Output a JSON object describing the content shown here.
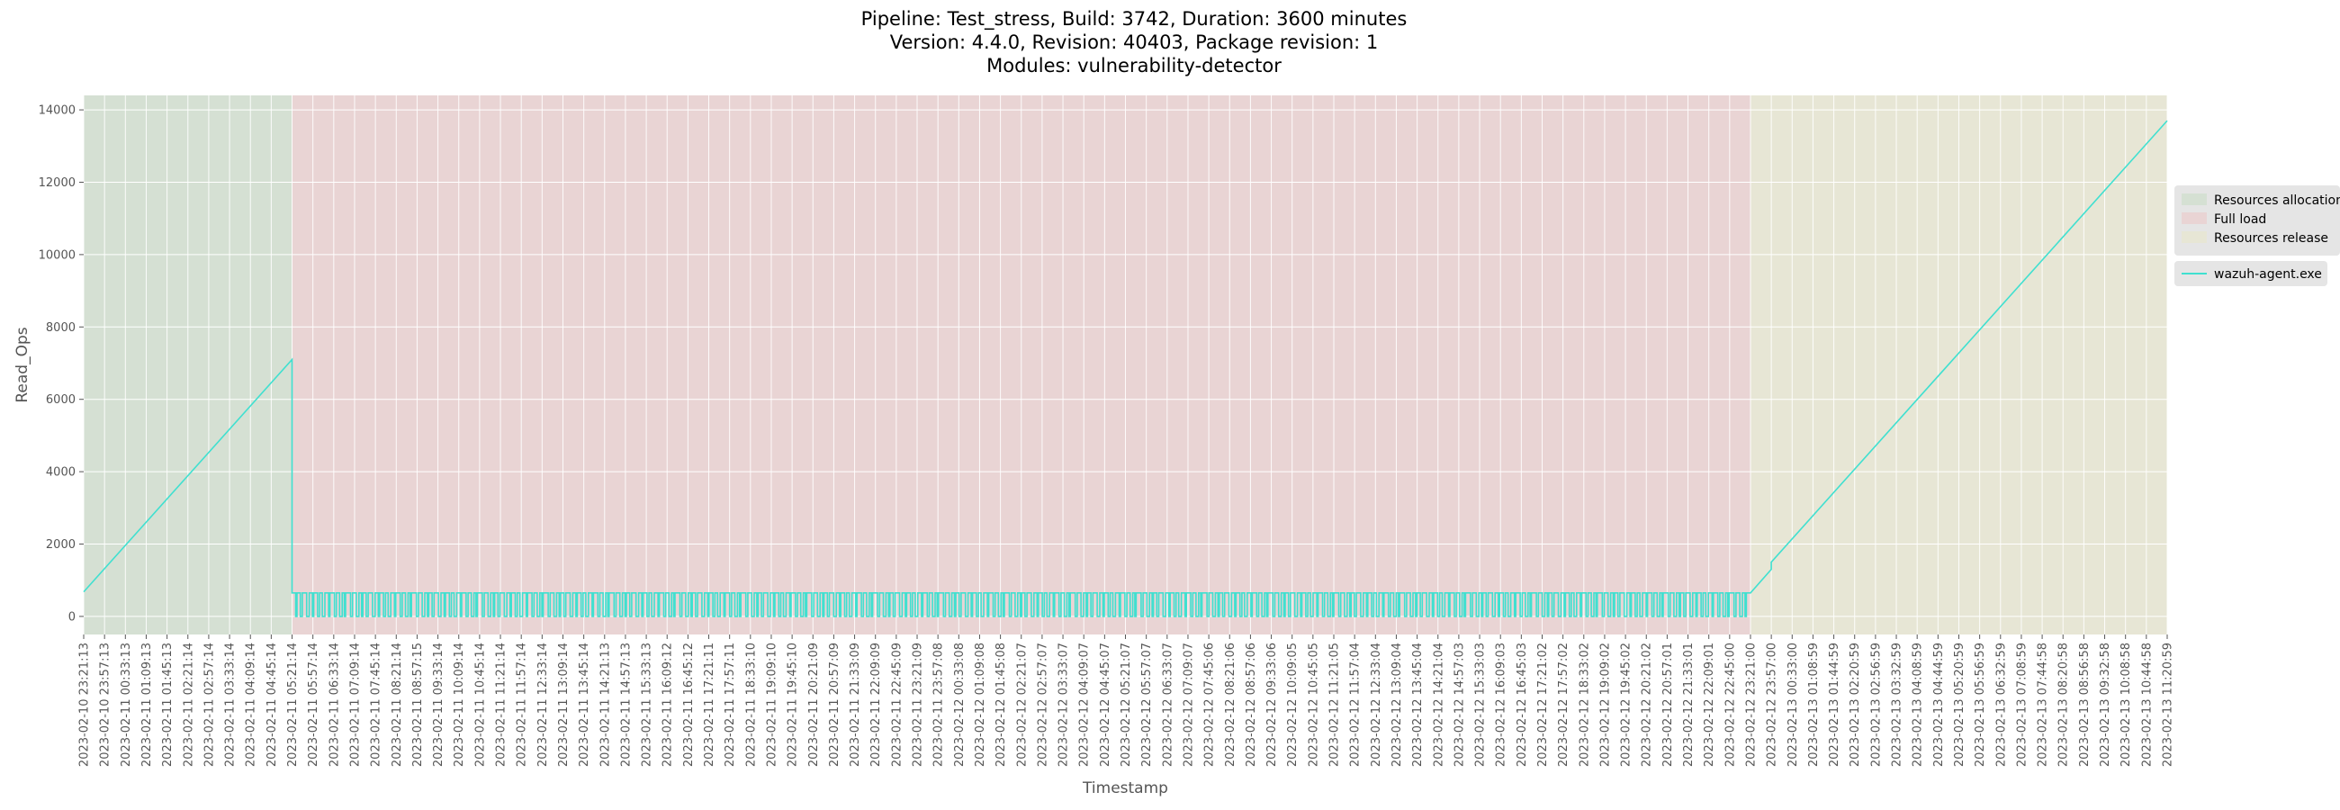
{
  "title_lines": [
    "Pipeline: Test_stress, Build: 3742, Duration: 3600 minutes",
    "Version: 4.4.0, Revision: 40403, Package revision: 1",
    "Modules: vulnerability-detector"
  ],
  "colors": {
    "background": "#ffffff",
    "plot_bg": "#e5e5e5",
    "grid": "#ffffff",
    "series": "#40e0d0",
    "phase_allocation": "#c9dcc5",
    "phase_full_load": "#ecc7c7",
    "phase_release": "#e9e8c8"
  },
  "chart_data": {
    "type": "line",
    "xlabel": "Timestamp",
    "ylabel": "Read_Ops",
    "ylim": [
      -500,
      14400
    ],
    "yticks": [
      0,
      2000,
      4000,
      6000,
      8000,
      10000,
      12000,
      14000
    ],
    "grid": true,
    "legend_position": "right",
    "xtick_labels": [
      "2023-02-10 23:21:13",
      "2023-02-10 23:57:13",
      "2023-02-11 00:33:13",
      "2023-02-11 01:09:13",
      "2023-02-11 01:45:13",
      "2023-02-11 02:21:14",
      "2023-02-11 02:57:14",
      "2023-02-11 03:33:14",
      "2023-02-11 04:09:14",
      "2023-02-11 04:45:14",
      "2023-02-11 05:21:14",
      "2023-02-11 05:57:14",
      "2023-02-11 06:33:14",
      "2023-02-11 07:09:14",
      "2023-02-11 07:45:14",
      "2023-02-11 08:21:14",
      "2023-02-11 08:57:15",
      "2023-02-11 09:33:14",
      "2023-02-11 10:09:14",
      "2023-02-11 10:45:14",
      "2023-02-11 11:21:14",
      "2023-02-11 11:57:14",
      "2023-02-11 12:33:14",
      "2023-02-11 13:09:14",
      "2023-02-11 13:45:14",
      "2023-02-11 14:21:13",
      "2023-02-11 14:57:13",
      "2023-02-11 15:33:13",
      "2023-02-11 16:09:12",
      "2023-02-11 16:45:12",
      "2023-02-11 17:21:11",
      "2023-02-11 17:57:11",
      "2023-02-11 18:33:10",
      "2023-02-11 19:09:10",
      "2023-02-11 19:45:10",
      "2023-02-11 20:21:09",
      "2023-02-11 20:57:09",
      "2023-02-11 21:33:09",
      "2023-02-11 22:09:09",
      "2023-02-11 22:45:09",
      "2023-02-11 23:21:09",
      "2023-02-11 23:57:08",
      "2023-02-12 00:33:08",
      "2023-02-12 01:09:08",
      "2023-02-12 01:45:08",
      "2023-02-12 02:21:07",
      "2023-02-12 02:57:07",
      "2023-02-12 03:33:07",
      "2023-02-12 04:09:07",
      "2023-02-12 04:45:07",
      "2023-02-12 05:21:07",
      "2023-02-12 05:57:07",
      "2023-02-12 06:33:07",
      "2023-02-12 07:09:07",
      "2023-02-12 07:45:06",
      "2023-02-12 08:21:06",
      "2023-02-12 08:57:06",
      "2023-02-12 09:33:06",
      "2023-02-12 10:09:05",
      "2023-02-12 10:45:05",
      "2023-02-12 11:21:05",
      "2023-02-12 11:57:04",
      "2023-02-12 12:33:04",
      "2023-02-12 13:09:04",
      "2023-02-12 13:45:04",
      "2023-02-12 14:21:04",
      "2023-02-12 14:57:03",
      "2023-02-12 15:33:03",
      "2023-02-12 16:09:03",
      "2023-02-12 16:45:03",
      "2023-02-12 17:21:02",
      "2023-02-12 17:57:02",
      "2023-02-12 18:33:02",
      "2023-02-12 19:09:02",
      "2023-02-12 19:45:02",
      "2023-02-12 20:21:02",
      "2023-02-12 20:57:01",
      "2023-02-12 21:33:01",
      "2023-02-12 22:09:01",
      "2023-02-12 22:45:00",
      "2023-02-12 23:21:00",
      "2023-02-12 23:57:00",
      "2023-02-13 00:33:00",
      "2023-02-13 01:08:59",
      "2023-02-13 01:44:59",
      "2023-02-13 02:20:59",
      "2023-02-13 02:56:59",
      "2023-02-13 03:32:59",
      "2023-02-13 04:08:59",
      "2023-02-13 04:44:59",
      "2023-02-13 05:20:59",
      "2023-02-13 05:56:59",
      "2023-02-13 06:32:59",
      "2023-02-13 07:08:59",
      "2023-02-13 07:44:58",
      "2023-02-13 08:20:58",
      "2023-02-13 08:56:58",
      "2023-02-13 09:32:58",
      "2023-02-13 10:08:58",
      "2023-02-13 10:44:58",
      "2023-02-13 11:20:59"
    ],
    "phases": [
      {
        "name": "Resources allocation",
        "start": "2023-02-10 23:21:13",
        "end": "2023-02-11 05:21:14"
      },
      {
        "name": "Full load",
        "start": "2023-02-11 05:21:14",
        "end": "2023-02-12 23:21:00"
      },
      {
        "name": "Resources release",
        "start": "2023-02-12 23:21:00",
        "end": "2023-02-13 11:20:59"
      }
    ],
    "series": [
      {
        "name": "wazuh-agent.exe",
        "segments": [
          {
            "pattern": "linear",
            "x_start": "2023-02-10 23:21:13",
            "y_start": 680,
            "x_end": "2023-02-11 05:21:14",
            "y_end": 7100
          },
          {
            "pattern": "oscillating",
            "x_start": "2023-02-11 05:21:14",
            "x_end": "2023-02-12 23:21:00",
            "y_high": 650,
            "y_low": 0
          },
          {
            "pattern": "linear",
            "x_start": "2023-02-12 23:21:00",
            "y_start": 650,
            "x_end": "2023-02-12 23:57:00",
            "y_end": 1300
          },
          {
            "pattern": "linear",
            "x_start": "2023-02-12 23:57:00",
            "y_start": 1500,
            "x_end": "2023-02-13 11:20:59",
            "y_end": 13700
          }
        ]
      }
    ]
  }
}
